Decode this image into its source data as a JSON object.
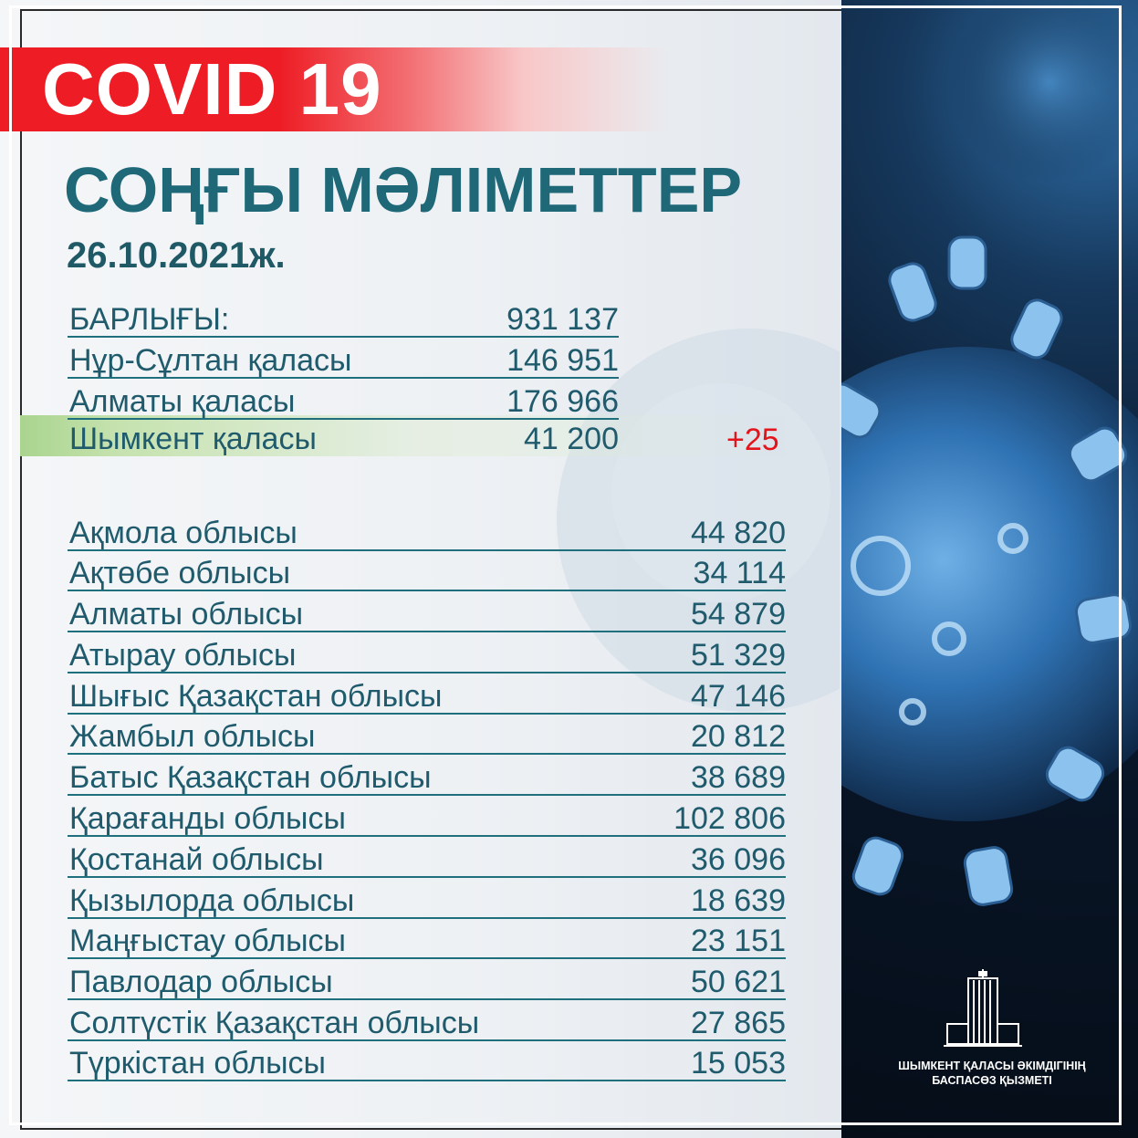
{
  "banner": {
    "title": "COVID 19"
  },
  "heading": "СОҢҒЫ МӘЛІМЕТТЕР",
  "date": "26.10.2021ж.",
  "summary": [
    {
      "label": "БАРЛЫҒЫ:",
      "value": "931 137"
    },
    {
      "label": "Нұр-Сұлтан қаласы",
      "value": "146 951"
    },
    {
      "label": "Алматы қаласы",
      "value": "176 966"
    },
    {
      "label": "Шымкент қаласы",
      "value": "41 200"
    }
  ],
  "shymkent_delta": "+25",
  "regions": [
    {
      "label": "Ақмола облысы",
      "value": "44 820"
    },
    {
      "label": "Ақтөбе облысы",
      "value": "34 114"
    },
    {
      "label": "Алматы облысы",
      "value": "54 879"
    },
    {
      "label": "Атырау облысы",
      "value": "51 329"
    },
    {
      "label": "Шығыс Қазақстан облысы",
      "value": "47 146"
    },
    {
      "label": "Жамбыл облысы",
      "value": "20 812"
    },
    {
      "label": "Батыс Қазақстан облысы",
      "value": "38 689"
    },
    {
      "label": "Қарағанды облысы",
      "value": "102 806"
    },
    {
      "label": "Қостанай облысы",
      "value": "36 096"
    },
    {
      "label": "Қызылорда облысы",
      "value": "18 639"
    },
    {
      "label": "Маңғыстау облысы",
      "value": "23 151"
    },
    {
      "label": "Павлодар облысы",
      "value": "50 621"
    },
    {
      "label": "Солтүстік Қазақстан облысы",
      "value": "27 865"
    },
    {
      "label": "Түркістан облысы",
      "value": "15 053"
    }
  ],
  "footer": {
    "line1": "ШЫМКЕНТ ҚАЛАСЫ ӘКІМДІГІНІҢ",
    "line2": "БАСПАСӨЗ ҚЫЗМЕТІ"
  },
  "colors": {
    "banner_red": "#ee1c24",
    "heading_teal": "#1e6878",
    "text_teal": "#1f5b6c",
    "delta_red": "#e3141b",
    "highlight_green": "#a9d48e"
  },
  "icons": [
    "virus-image",
    "government-building-icon"
  ]
}
